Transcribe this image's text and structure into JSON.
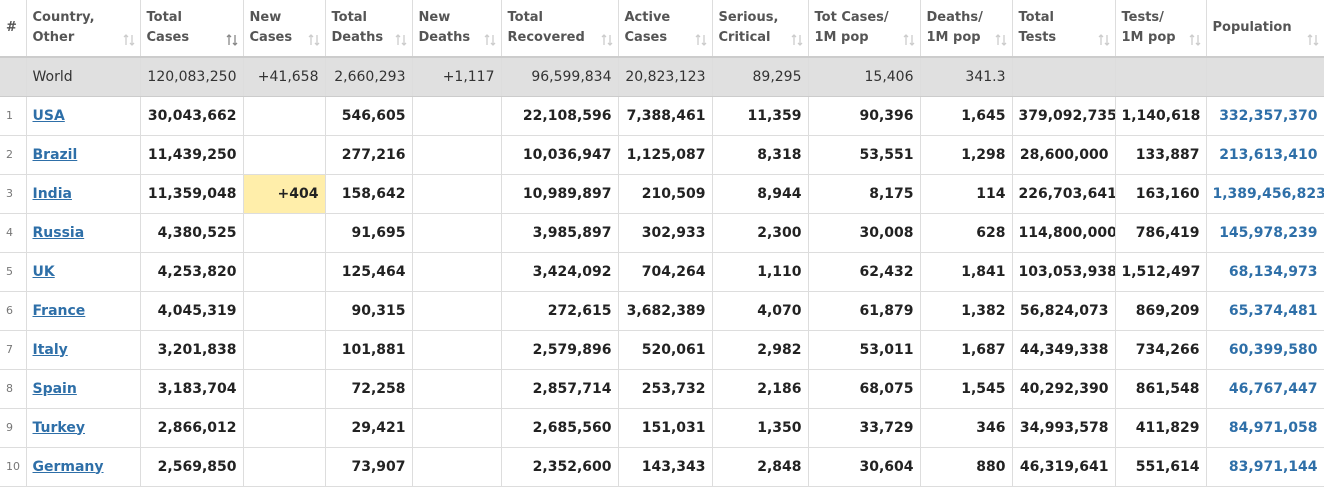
{
  "columns": [
    [
      "#"
    ],
    [
      "Country,",
      "Other"
    ],
    [
      "Total",
      "Cases"
    ],
    [
      "New",
      "Cases"
    ],
    [
      "Total",
      "Deaths"
    ],
    [
      "New",
      "Deaths"
    ],
    [
      "Total",
      "Recovered"
    ],
    [
      "Active",
      "Cases"
    ],
    [
      "Serious,",
      "Critical"
    ],
    [
      "Tot Cases/",
      "1M pop"
    ],
    [
      "Deaths/",
      "1M pop"
    ],
    [
      "Total",
      "Tests"
    ],
    [
      "Tests/",
      "1M pop"
    ],
    [
      "Population"
    ]
  ],
  "world": [
    null,
    "World",
    "120,083,250",
    "+41,658",
    "2,660,293",
    "+1,117",
    "96,599,834",
    "20,823,123",
    "89,295",
    "15,406",
    "341.3",
    null,
    null,
    null
  ],
  "rows": [
    [
      "1",
      "USA",
      "30,043,662",
      null,
      "546,605",
      null,
      "22,108,596",
      "7,388,461",
      "11,359",
      "90,396",
      "1,645",
      "379,092,735",
      "1,140,618",
      "332,357,370"
    ],
    [
      "2",
      "Brazil",
      "11,439,250",
      null,
      "277,216",
      null,
      "10,036,947",
      "1,125,087",
      "8,318",
      "53,551",
      "1,298",
      "28,600,000",
      "133,887",
      "213,613,410"
    ],
    [
      "3",
      "India",
      "11,359,048",
      "+404",
      "158,642",
      null,
      "10,989,897",
      "210,509",
      "8,944",
      "8,175",
      "114",
      "226,703,641",
      "163,160",
      "1,389,456,823"
    ],
    [
      "4",
      "Russia",
      "4,380,525",
      null,
      "91,695",
      null,
      "3,985,897",
      "302,933",
      "2,300",
      "30,008",
      "628",
      "114,800,000",
      "786,419",
      "145,978,239"
    ],
    [
      "5",
      "UK",
      "4,253,820",
      null,
      "125,464",
      null,
      "3,424,092",
      "704,264",
      "1,110",
      "62,432",
      "1,841",
      "103,053,938",
      "1,512,497",
      "68,134,973"
    ],
    [
      "6",
      "France",
      "4,045,319",
      null,
      "90,315",
      null,
      "272,615",
      "3,682,389",
      "4,070",
      "61,879",
      "1,382",
      "56,824,073",
      "869,209",
      "65,374,481"
    ],
    [
      "7",
      "Italy",
      "3,201,838",
      null,
      "101,881",
      null,
      "2,579,896",
      "520,061",
      "2,982",
      "53,011",
      "1,687",
      "44,349,338",
      "734,266",
      "60,399,580"
    ],
    [
      "8",
      "Spain",
      "3,183,704",
      null,
      "72,258",
      null,
      "2,857,714",
      "253,732",
      "2,186",
      "68,075",
      "1,545",
      "40,292,390",
      "861,548",
      "46,767,447"
    ],
    [
      "9",
      "Turkey",
      "2,866,012",
      null,
      "29,421",
      null,
      "2,685,560",
      "151,031",
      "1,350",
      "33,729",
      "346",
      "34,993,578",
      "411,829",
      "84,971,058"
    ],
    [
      "10",
      "Germany",
      "2,569,850",
      null,
      "73,907",
      null,
      "2,352,600",
      "143,343",
      "2,848",
      "30,604",
      "880",
      "46,319,641",
      "551,614",
      "83,971,144"
    ]
  ]
}
